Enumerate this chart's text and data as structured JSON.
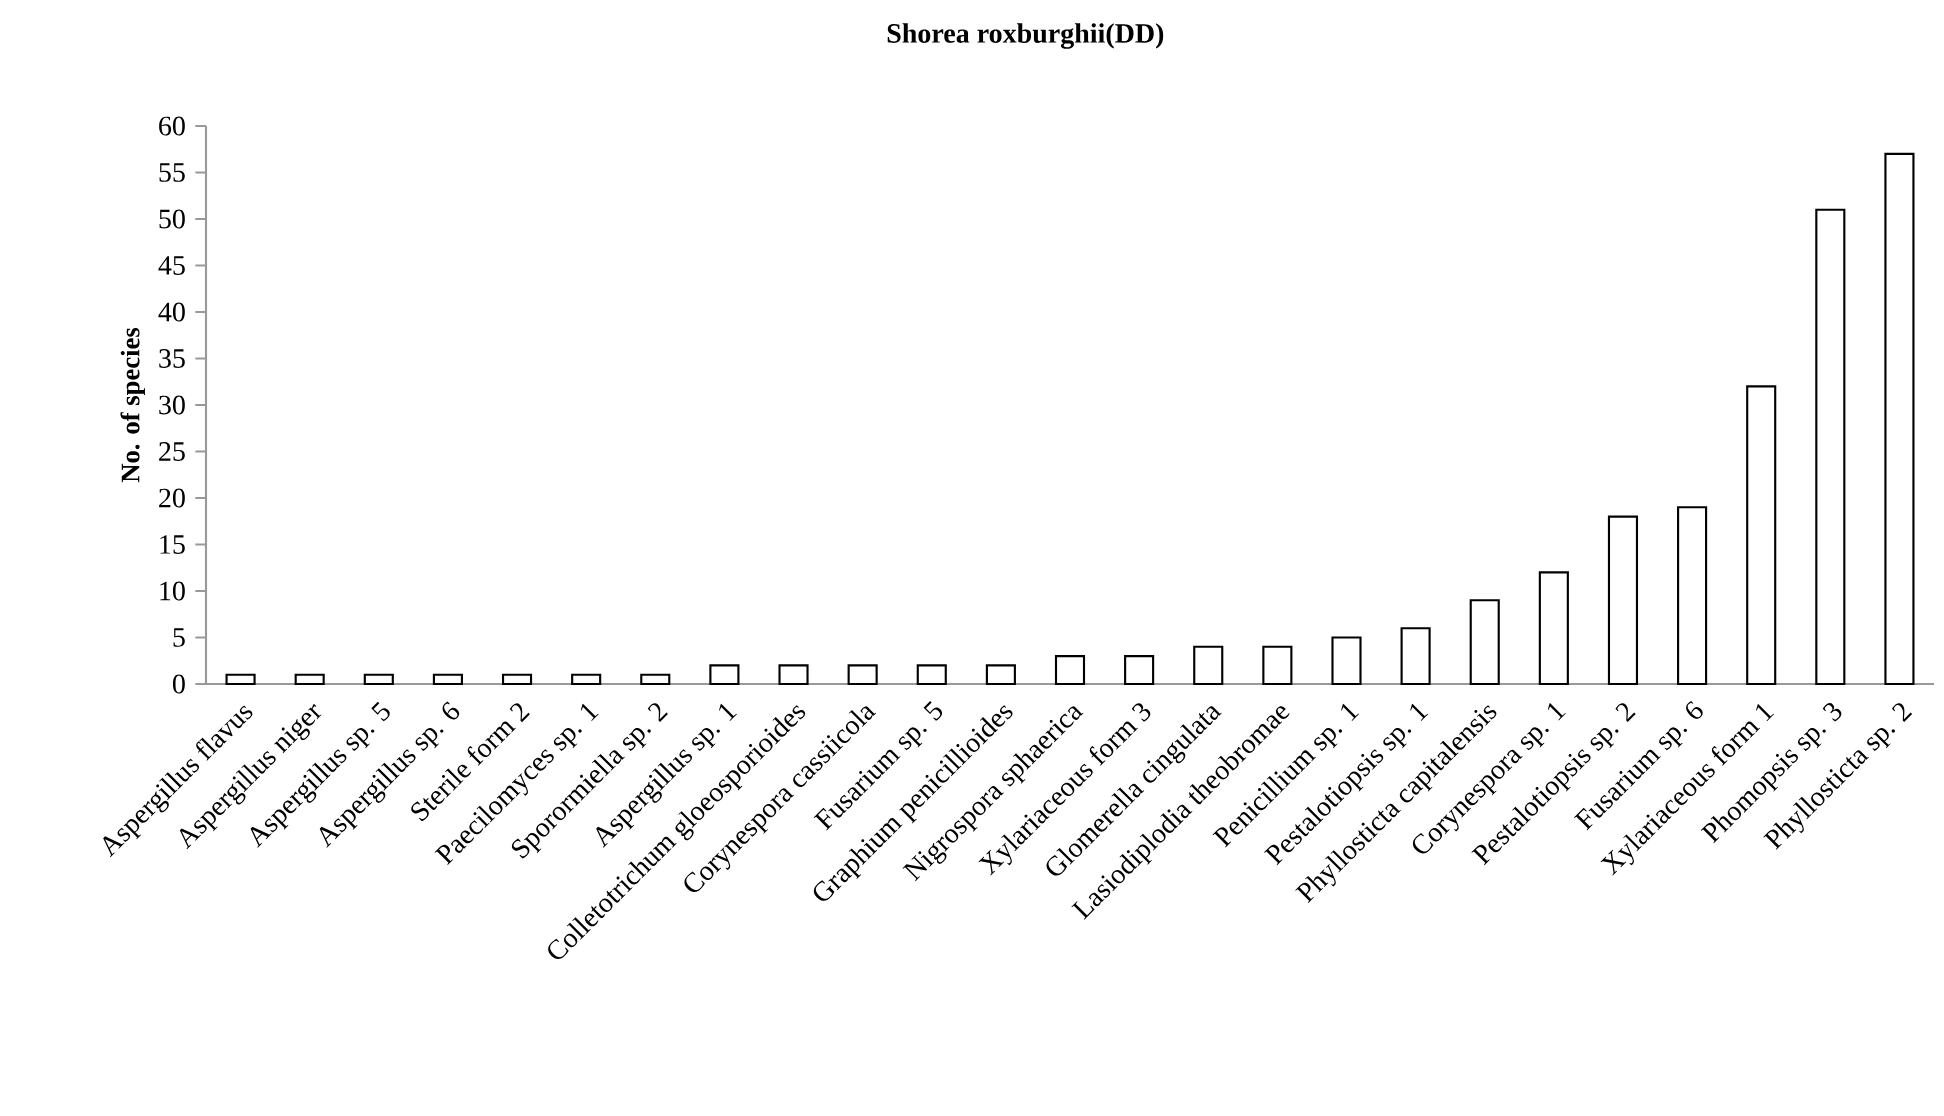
{
  "chart_data": {
    "type": "bar",
    "title": "Shorea roxburghii(DD)",
    "ylabel": "No. of species",
    "categories": [
      "Aspergillus flavus",
      "Aspergillus niger",
      "Aspergillus sp. 5",
      "Aspergillus sp. 6",
      "Sterile form 2",
      "Paecilomyces sp. 1",
      "Sporormiella sp. 2",
      "Aspergillus sp. 1",
      "Colletotrichum gloeosporioides",
      "Corynespora cassiicola",
      "Fusarium sp. 5",
      "Graphium penicillioides",
      "Nigrospora sphaerica",
      "Xylariaceous form 3",
      "Glomerella cingulata",
      "Lasiodiplodia theobromae",
      "Penicillium sp. 1",
      "Pestalotiopsis sp. 1",
      "Phyllosticta capitalensis",
      "Corynespora sp. 1",
      "Pestalotiopsis sp. 2",
      "Fusarium sp. 6",
      "Xylariaceous form 1",
      "Phomopsis sp. 3",
      "Phyllosticta sp. 2"
    ],
    "values": [
      1,
      1,
      1,
      1,
      1,
      1,
      1,
      2,
      2,
      2,
      2,
      2,
      3,
      3,
      4,
      4,
      5,
      6,
      9,
      12,
      18,
      19,
      32,
      51,
      57
    ],
    "color": "#ffffff",
    "ylim": [
      0,
      60
    ],
    "yticks": [
      0,
      5,
      10,
      15,
      20,
      25,
      30,
      35,
      40,
      45,
      50,
      55,
      60
    ]
  }
}
